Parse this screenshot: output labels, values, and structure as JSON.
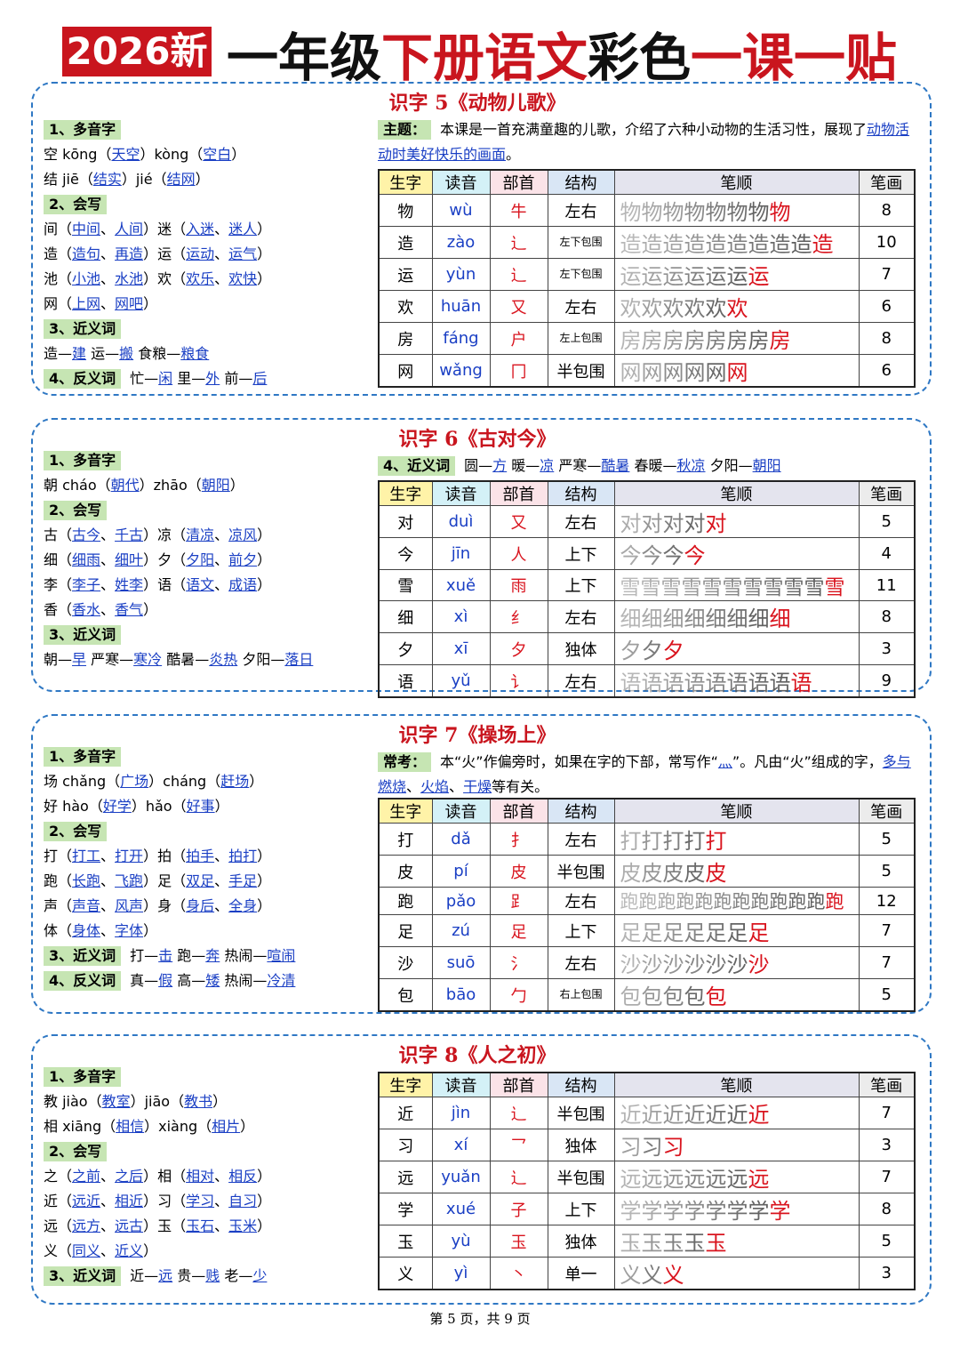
{
  "header": {
    "badge": "2026新",
    "title": [
      "一年级",
      "下册语文",
      "彩色",
      "一课一贴"
    ]
  },
  "lessons": [
    {
      "title": "识字 5《动物儿歌》",
      "left": [
        {
          "heading": "1、多音字",
          "lines": [
            [
              "空 kōng（",
              "天空",
              "）kòng（",
              "空白",
              "）"
            ],
            [
              "结 jiē（",
              "结实",
              "）jié（",
              "结网",
              "）"
            ]
          ]
        },
        {
          "heading": "2、会写",
          "lines": [
            [
              "间（",
              "中间",
              "、",
              "人间",
              "）迷（",
              "入迷",
              "、",
              "迷人",
              "）"
            ],
            [
              "造（",
              "造句",
              "、",
              "再造",
              "）运（",
              "运动",
              "、",
              "运气",
              "）"
            ],
            [
              "池（",
              "小池",
              "、",
              "水池",
              "）欢（",
              "欢乐",
              "、",
              "欢快",
              "）"
            ],
            [
              "网（",
              "上网",
              "、",
              "网吧",
              "）"
            ]
          ]
        },
        {
          "heading": "3、近义词",
          "lines": [
            [
              "造—",
              "建",
              " 运—",
              "搬",
              " 食粮—",
              "粮食"
            ]
          ]
        },
        {
          "heading": "4、反义词",
          "inline": [
            "忙—",
            "闲",
            " 里—",
            "外",
            " 前—",
            "后"
          ]
        }
      ],
      "note": {
        "label": "主题：",
        "text": [
          "本课是一首充满童趣的儿歌，介绍了六种小动物的生活习性，展现了",
          "动物活动时美好快乐的画面",
          "。"
        ]
      },
      "table": {
        "headers": [
          "生字",
          "读音",
          "部首",
          "结构",
          "笔顺",
          "笔画"
        ],
        "rows": [
          [
            "物",
            "wù",
            "牛",
            "左右",
            8
          ],
          [
            "造",
            "zào",
            "辶",
            "左下包围",
            10
          ],
          [
            "运",
            "yùn",
            "辶",
            "左下包围",
            7
          ],
          [
            "欢",
            "huān",
            "又",
            "左右",
            6
          ],
          [
            "房",
            "fáng",
            "户",
            "左上包围",
            8
          ],
          [
            "网",
            "wǎng",
            "冂",
            "半包围",
            6
          ]
        ]
      }
    },
    {
      "title": "识字 6《古对今》",
      "left": [
        {
          "heading": "1、多音字",
          "lines": [
            [
              "朝 cháo（",
              "朝代",
              "）zhāo（",
              "朝阳",
              "）"
            ]
          ]
        },
        {
          "heading": "2、会写",
          "lines": [
            [
              "古（",
              "古今",
              "、",
              "千古",
              "）凉（",
              "清凉",
              "、",
              "凉风",
              "）"
            ],
            [
              "细（",
              "细雨",
              "、",
              "细叶",
              "）夕（",
              "夕阳",
              "、",
              "前夕",
              "）"
            ],
            [
              "李（",
              "李子",
              "、",
              "姓李",
              "）语（",
              "语文",
              "、",
              "成语",
              "）"
            ],
            [
              "香（",
              "香水",
              "、",
              "香气",
              "）"
            ]
          ]
        },
        {
          "heading": "3、近义词",
          "lines": [
            [
              "朝—",
              "早",
              " 严寒—",
              "寒冷",
              " 酷暑—",
              "炎热",
              " 夕阳—",
              "落日"
            ]
          ]
        }
      ],
      "note": {
        "label": "4、近义词",
        "text": [
          "圆—",
          "方",
          " 暖—",
          "凉",
          " 严寒—",
          "酷暑",
          " 春暖—",
          "秋凉",
          " 夕阳—",
          "朝阳"
        ]
      },
      "table": {
        "headers": [
          "生字",
          "读音",
          "部首",
          "结构",
          "笔顺",
          "笔画"
        ],
        "rows": [
          [
            "对",
            "duì",
            "又",
            "左右",
            5
          ],
          [
            "今",
            "jīn",
            "人",
            "上下",
            4
          ],
          [
            "雪",
            "xuě",
            "雨",
            "上下",
            11
          ],
          [
            "细",
            "xì",
            "纟",
            "左右",
            8
          ],
          [
            "夕",
            "xī",
            "夕",
            "独体",
            3
          ],
          [
            "语",
            "yǔ",
            "讠",
            "左右",
            9
          ]
        ]
      }
    },
    {
      "title": "识字 7《操场上》",
      "left": [
        {
          "heading": "1、多音字",
          "lines": [
            [
              "场 chǎng（",
              "广场",
              "）cháng（",
              "赶场",
              "）"
            ],
            [
              "好 hào（",
              "好学",
              "）hǎo（",
              "好事",
              "）"
            ]
          ]
        },
        {
          "heading": "2、会写",
          "lines": [
            [
              "打（",
              "打工",
              "、",
              "打开",
              "）拍（",
              "拍手",
              "、",
              "拍打",
              "）"
            ],
            [
              "跑（",
              "长跑",
              "、",
              "飞跑",
              "）足（",
              "双足",
              "、",
              "手足",
              "）"
            ],
            [
              "声（",
              "声音",
              "、",
              "风声",
              "）身（",
              "身后",
              "、",
              "全身",
              "）"
            ],
            [
              "体（",
              "身体",
              "、",
              "字体",
              "）"
            ]
          ]
        },
        {
          "heading": "3、近义词",
          "inline": [
            "打—",
            "击",
            " 跑—",
            "奔",
            " 热闹—",
            "喧闹"
          ]
        },
        {
          "heading": "4、反义词",
          "inline": [
            "真—",
            "假",
            " 高—",
            "矮",
            " 热闹—",
            "冷清"
          ]
        }
      ],
      "note": {
        "label": "常考：",
        "text": [
          "本“火”作偏旁时，如果在字的下部，常写作“",
          "灬",
          "”。凡由“火”组成的字，",
          "多与燃烧",
          "、",
          "火焰",
          "、",
          "干燥",
          "等有关。"
        ]
      },
      "table": {
        "headers": [
          "生字",
          "读音",
          "部首",
          "结构",
          "笔顺",
          "笔画"
        ],
        "rows": [
          [
            "打",
            "dǎ",
            "扌",
            "左右",
            5
          ],
          [
            "皮",
            "pí",
            "皮",
            "半包围",
            5
          ],
          [
            "跑",
            "pǎo",
            "⻊",
            "左右",
            12
          ],
          [
            "足",
            "zú",
            "足",
            "上下",
            7
          ],
          [
            "沙",
            "suō",
            "氵",
            "左右",
            7
          ],
          [
            "包",
            "bāo",
            "勹",
            "右上包围",
            5
          ]
        ]
      }
    },
    {
      "title": "识字 8《人之初》",
      "left": [
        {
          "heading": "1、多音字",
          "lines": [
            [
              "教 jiào（",
              "教室",
              "）jiāo（",
              "教书",
              "）"
            ],
            [
              "相 xiāng（",
              "相信",
              "）xiàng（",
              "相片",
              "）"
            ]
          ]
        },
        {
          "heading": "2、会写",
          "lines": [
            [
              "之（",
              "之前",
              "、",
              "之后",
              "）相（",
              "相对",
              "、",
              "相反",
              "）"
            ],
            [
              "近（",
              "远近",
              "、",
              "相近",
              "）习（",
              "学习",
              "、",
              "自习",
              "）"
            ],
            [
              "远（",
              "远方",
              "、",
              "远古",
              "）玉（",
              "玉石",
              "、",
              "玉米",
              "）"
            ],
            [
              "义（",
              "同义",
              "、",
              "近义",
              "）"
            ]
          ]
        },
        {
          "heading": "3、近义词",
          "inline": [
            "近—",
            "远",
            " 贵—",
            "贱",
            " 老—",
            "少"
          ]
        }
      ],
      "table": {
        "headers": [
          "生字",
          "读音",
          "部首",
          "结构",
          "笔顺",
          "笔画"
        ],
        "rows": [
          [
            "近",
            "jìn",
            "辶",
            "半包围",
            7
          ],
          [
            "习",
            "xí",
            "乛",
            "独体",
            3
          ],
          [
            "远",
            "yuǎn",
            "辶",
            "半包围",
            7
          ],
          [
            "学",
            "xué",
            "子",
            "上下",
            8
          ],
          [
            "玉",
            "yù",
            "玉",
            "独体",
            5
          ],
          [
            "义",
            "yì",
            "丶",
            "单一",
            3
          ]
        ]
      }
    }
  ],
  "footer": "第 5 页，共 9 页"
}
